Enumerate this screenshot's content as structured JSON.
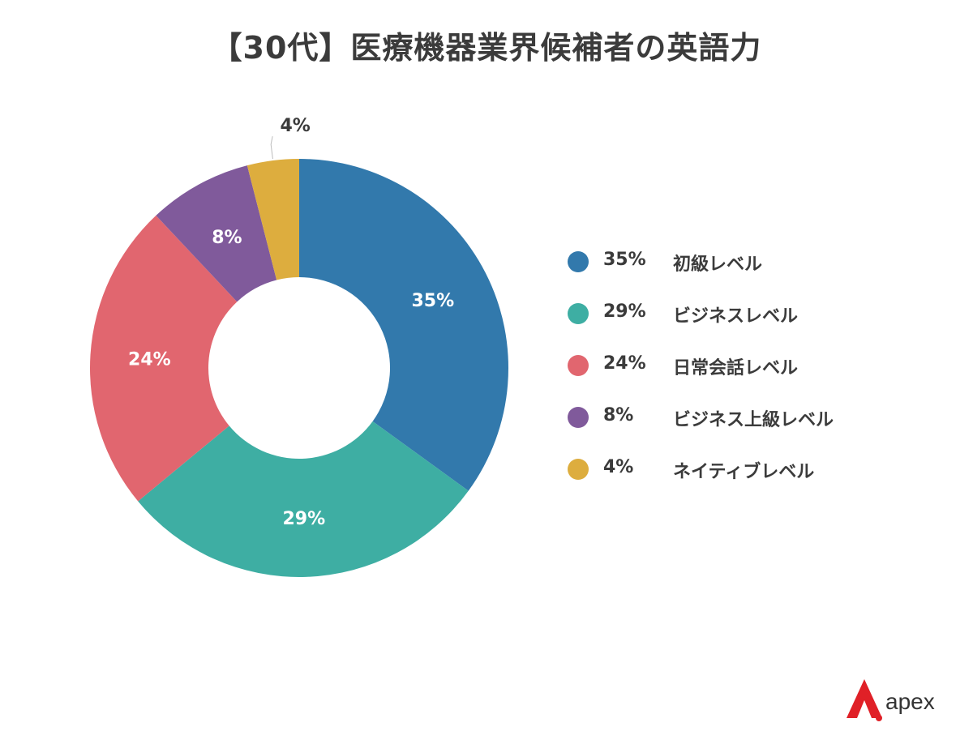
{
  "title": "【30代】医療機器業界候補者の英語力",
  "chart_data": {
    "type": "pie",
    "donut": true,
    "slices": [
      {
        "label": "初級レベル",
        "value": 35,
        "display": "35%",
        "color": "#3279ac"
      },
      {
        "label": "ビジネスレベル",
        "value": 29,
        "display": "29%",
        "color": "#3eaea3"
      },
      {
        "label": "日常会話レベル",
        "value": 24,
        "display": "24%",
        "color": "#e1666f"
      },
      {
        "label": "ビジネス上級レベル",
        "value": 8,
        "display": "8%",
        "color": "#805a9b"
      },
      {
        "label": "ネイティブレベル",
        "value": 4,
        "display": "4%",
        "color": "#ddad3e"
      }
    ],
    "legend_position": "right"
  },
  "logo": {
    "text": "apex",
    "mark_color": "#e02027"
  }
}
